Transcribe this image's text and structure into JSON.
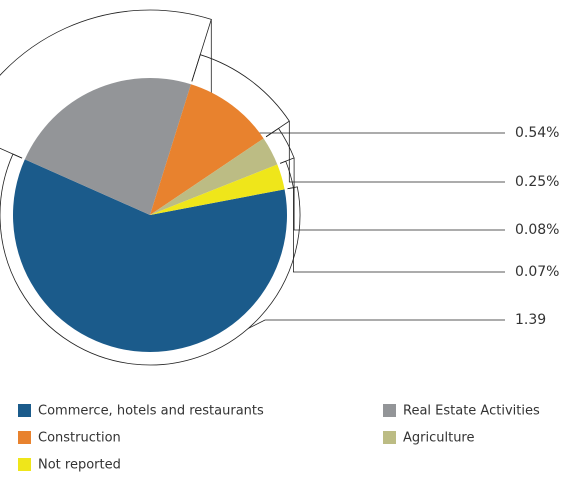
{
  "chart_data": {
    "type": "pie",
    "categories": [
      "Commerce, hotels and restaurants",
      "Real Estate Activities",
      "Construction",
      "Agriculture",
      "Not reported"
    ],
    "values": [
      1.39,
      0.54,
      0.25,
      0.08,
      0.07
    ],
    "value_labels": [
      "1.39",
      "0.54%",
      "0.25%",
      "0.08%",
      "0.07%"
    ],
    "colors": [
      "#1b5b8b",
      "#939598",
      "#e8822e",
      "#bcbc84",
      "#efe61a"
    ]
  }
}
